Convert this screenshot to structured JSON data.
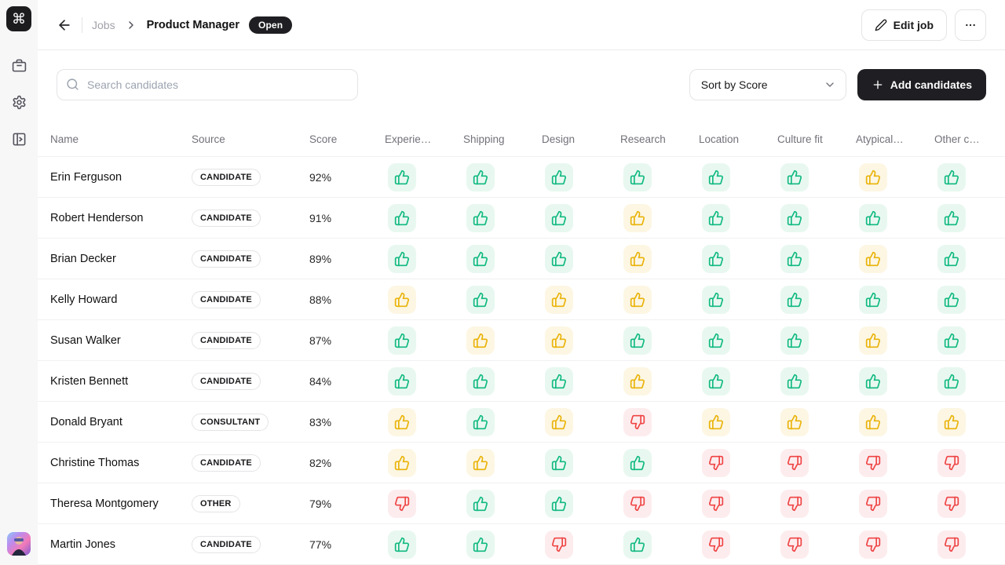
{
  "app": {
    "logo_glyph": "⌘"
  },
  "sidebar": {
    "items": [
      {
        "id": "jobs",
        "icon": "briefcase-icon"
      },
      {
        "id": "settings",
        "icon": "gear-icon"
      },
      {
        "id": "panel",
        "icon": "panel-toggle-icon"
      }
    ]
  },
  "header": {
    "breadcrumb": {
      "parent": "Jobs",
      "current": "Product Manager"
    },
    "status_badge": "Open",
    "edit_job_label": "Edit job"
  },
  "toolbar": {
    "search_placeholder": "Search candidates",
    "sort_value": "Sort by Score",
    "add_label": "Add candidates"
  },
  "table": {
    "columns": [
      "Name",
      "Source",
      "Score",
      "Experie…",
      "Shipping",
      "Design",
      "Research",
      "Location",
      "Culture fit",
      "Atypical…",
      "Other c…"
    ],
    "rows": [
      {
        "name": "Erin Ferguson",
        "source": "CANDIDATE",
        "score": "92%",
        "ratings": [
          "green-up",
          "green-up",
          "green-up",
          "green-up",
          "green-up",
          "green-up",
          "yellow-up",
          "green-up"
        ]
      },
      {
        "name": "Robert Henderson",
        "source": "CANDIDATE",
        "score": "91%",
        "ratings": [
          "green-up",
          "green-up",
          "green-up",
          "yellow-up",
          "green-up",
          "green-up",
          "green-up",
          "green-up"
        ]
      },
      {
        "name": "Brian Decker",
        "source": "CANDIDATE",
        "score": "89%",
        "ratings": [
          "green-up",
          "green-up",
          "green-up",
          "yellow-up",
          "green-up",
          "green-up",
          "yellow-up",
          "green-up"
        ]
      },
      {
        "name": "Kelly Howard",
        "source": "CANDIDATE",
        "score": "88%",
        "ratings": [
          "yellow-up",
          "green-up",
          "yellow-up",
          "yellow-up",
          "green-up",
          "green-up",
          "green-up",
          "green-up"
        ]
      },
      {
        "name": "Susan Walker",
        "source": "CANDIDATE",
        "score": "87%",
        "ratings": [
          "green-up",
          "yellow-up",
          "yellow-up",
          "green-up",
          "green-up",
          "green-up",
          "yellow-up",
          "green-up"
        ]
      },
      {
        "name": "Kristen Bennett",
        "source": "CANDIDATE",
        "score": "84%",
        "ratings": [
          "green-up",
          "green-up",
          "green-up",
          "yellow-up",
          "green-up",
          "green-up",
          "green-up",
          "green-up"
        ]
      },
      {
        "name": "Donald Bryant",
        "source": "CONSULTANT",
        "score": "83%",
        "ratings": [
          "yellow-up",
          "green-up",
          "yellow-up",
          "red-down",
          "yellow-up",
          "yellow-up",
          "yellow-up",
          "yellow-up"
        ]
      },
      {
        "name": "Christine Thomas",
        "source": "CANDIDATE",
        "score": "82%",
        "ratings": [
          "yellow-up",
          "yellow-up",
          "green-up",
          "green-up",
          "red-down",
          "red-down",
          "red-down",
          "red-down"
        ]
      },
      {
        "name": "Theresa Montgomery",
        "source": "OTHER",
        "score": "79%",
        "ratings": [
          "red-down",
          "green-up",
          "green-up",
          "red-down",
          "red-down",
          "red-down",
          "red-down",
          "red-down"
        ]
      },
      {
        "name": "Martin Jones",
        "source": "CANDIDATE",
        "score": "77%",
        "ratings": [
          "green-up",
          "green-up",
          "red-down",
          "green-up",
          "red-down",
          "red-down",
          "red-down",
          "red-down"
        ]
      }
    ]
  },
  "colors": {
    "dark": "#1f1f23",
    "green": "#10b981",
    "greenBg": "#e8f8f0",
    "yellow": "#eab308",
    "yellowBg": "#fcf6e3",
    "red": "#ef4444",
    "redBg": "#fdecee"
  }
}
